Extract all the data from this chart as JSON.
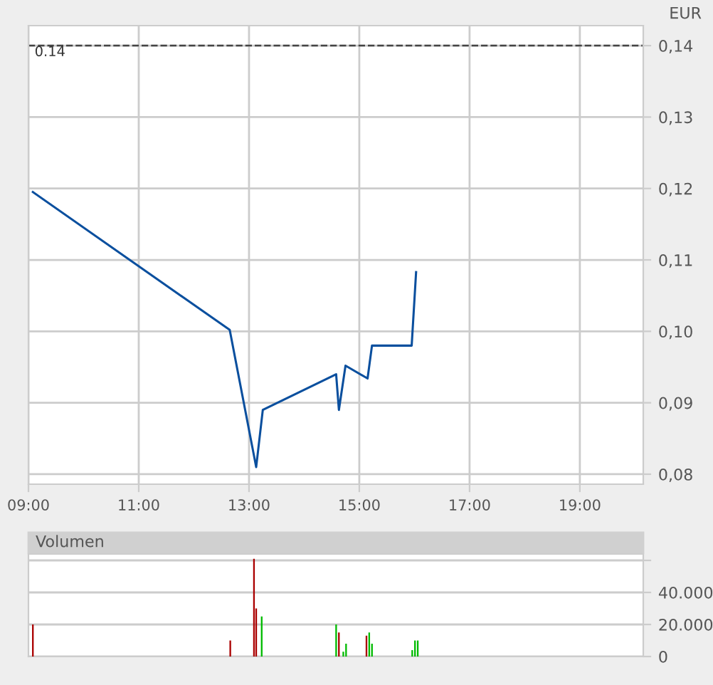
{
  "chart_data": [
    {
      "type": "line",
      "ylabel": "EUR",
      "x": [
        9.08,
        12.65,
        13.13,
        13.25,
        14.58,
        14.63,
        14.75,
        15.15,
        15.23,
        15.95,
        16.03
      ],
      "series": [
        {
          "color": "#0a4f9e",
          "values": [
            0.1195,
            0.1002,
            0.081,
            0.089,
            0.094,
            0.089,
            0.0952,
            0.0934,
            0.098,
            0.098,
            0.1083
          ]
        }
      ],
      "xlim": [
        9,
        20.15
      ],
      "ylim": [
        0.0786,
        0.1428
      ],
      "xticks": [
        {
          "value": 9,
          "label": "09:00"
        },
        {
          "value": 11,
          "label": "11:00"
        },
        {
          "value": 13,
          "label": "13:00"
        },
        {
          "value": 15,
          "label": "15:00"
        },
        {
          "value": 17,
          "label": "17:00"
        },
        {
          "value": 19,
          "label": "19:00"
        }
      ],
      "yticks": [
        {
          "value": 0.08,
          "label": "0,08"
        },
        {
          "value": 0.09,
          "label": "0,09"
        },
        {
          "value": 0.1,
          "label": "0,10"
        },
        {
          "value": 0.11,
          "label": "0,11"
        },
        {
          "value": 0.12,
          "label": "0,12"
        },
        {
          "value": 0.13,
          "label": "0,13"
        },
        {
          "value": 0.14,
          "label": "0,14"
        }
      ],
      "ref_lines": [
        {
          "axis": "y",
          "value": 0.14,
          "label": "0.14",
          "color": "#444444",
          "line_style": "dashed"
        }
      ],
      "grid": true,
      "marker": "none",
      "line_style": "solid"
    },
    {
      "type": "bar",
      "title": "Volumen",
      "x": [
        9.08,
        12.66,
        13.09,
        13.13,
        13.23,
        14.58,
        14.63,
        14.71,
        14.76,
        15.13,
        15.18,
        15.23,
        15.96,
        16.01,
        16.06
      ],
      "values": [
        20000,
        10000,
        61000,
        30000,
        25000,
        20000,
        15000,
        3000,
        8000,
        13000,
        15000,
        8000,
        4000,
        10000,
        10000
      ],
      "colors": [
        "#aa0000",
        "#aa0000",
        "#aa0000",
        "#aa0000",
        "#00bb00",
        "#00bb00",
        "#aa0000",
        "#00bb00",
        "#00bb00",
        "#aa0000",
        "#00bb00",
        "#00bb00",
        "#00bb00",
        "#00bb00",
        "#00bb00"
      ],
      "xlim": [
        9,
        20.15
      ],
      "ylim": [
        0,
        64000
      ],
      "yticks": [
        {
          "value": 0,
          "label": "0"
        },
        {
          "value": 20000,
          "label": "20.000"
        },
        {
          "value": 40000,
          "label": "40.000"
        },
        {
          "value": 60000,
          "label": null
        }
      ],
      "grid": "y",
      "tick_labels": "y"
    }
  ]
}
